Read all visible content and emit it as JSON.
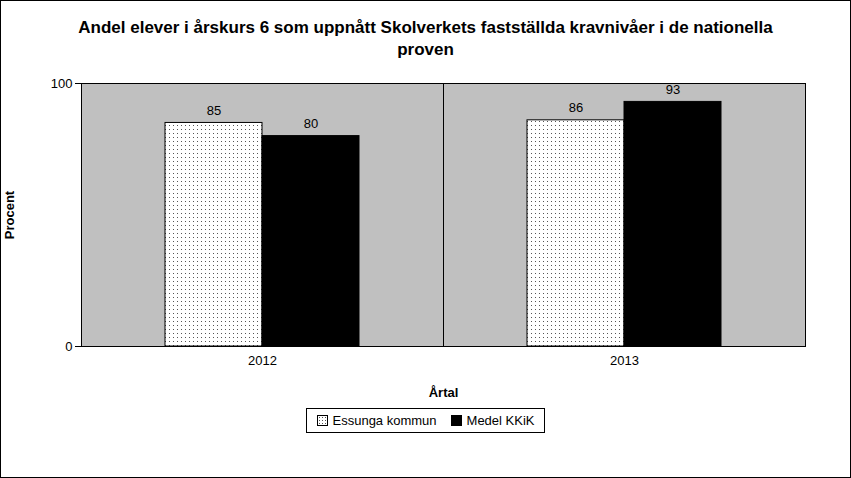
{
  "chart_data": {
    "type": "bar",
    "title": "Andel elever i årskurs 6 som uppnått Skolverkets fastställda kravnivåer i de nationella proven",
    "categories": [
      "2012",
      "2013"
    ],
    "series": [
      {
        "name": "Essunga kommun",
        "color": "#ffffff",
        "values": [
          85,
          86
        ]
      },
      {
        "name": "Medel KKiK",
        "color": "#000000",
        "values": [
          80,
          93
        ]
      }
    ],
    "x_label": "Årtal",
    "y_label": "Procent",
    "ylim": [
      0,
      100
    ],
    "yticks": [
      0,
      100
    ],
    "grid": true,
    "data_labels": true,
    "legend": "bottom"
  }
}
